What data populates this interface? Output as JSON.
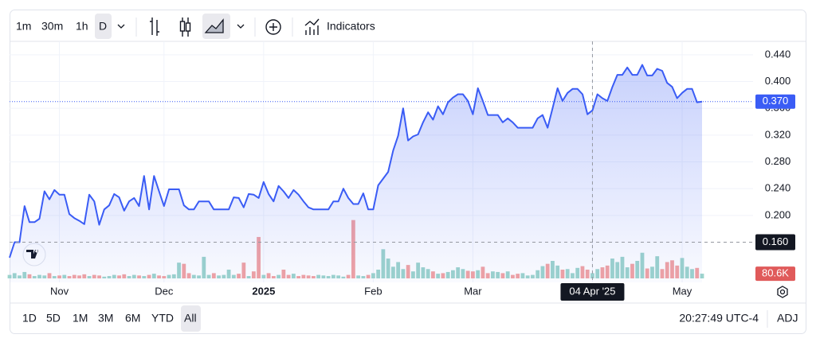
{
  "toolbar": {
    "intervals": [
      "1m",
      "30m",
      "1h",
      "D"
    ],
    "indicators": "Indicators"
  },
  "range_bar": {
    "ranges": [
      "1D",
      "5D",
      "1M",
      "3M",
      "6M",
      "YTD",
      "All"
    ],
    "time": "20:27:49 UTC-4",
    "adjust": "ADJ"
  },
  "chart_data": {
    "type": "area",
    "categories": [
      null,
      null,
      null,
      null,
      null,
      null,
      null,
      null,
      null,
      null,
      "Nov",
      null,
      null,
      null,
      null,
      null,
      null,
      null,
      null,
      null,
      null,
      null,
      null,
      null,
      null,
      null,
      null,
      null,
      null,
      null,
      null,
      "Dec",
      null,
      null,
      null,
      null,
      null,
      null,
      null,
      null,
      null,
      null,
      null,
      null,
      null,
      null,
      null,
      null,
      null,
      null,
      null,
      "2025",
      null,
      null,
      null,
      null,
      null,
      null,
      null,
      null,
      null,
      null,
      null,
      null,
      null,
      null,
      null,
      null,
      null,
      null,
      null,
      null,
      null,
      "Feb",
      null,
      null,
      null,
      null,
      null,
      null,
      null,
      null,
      null,
      null,
      null,
      null,
      null,
      null,
      null,
      null,
      null,
      null,
      null,
      "Mar",
      null,
      null,
      null,
      null,
      null,
      null,
      null,
      null,
      null,
      null,
      null,
      null,
      null,
      null,
      null,
      null,
      null,
      null,
      null,
      null,
      null,
      null,
      null,
      "04 Apr '25",
      null,
      null,
      null,
      null,
      null,
      null,
      null,
      null,
      null,
      null,
      null,
      null,
      null,
      null,
      null,
      null,
      null,
      "May",
      null,
      null,
      null,
      null
    ],
    "values": [
      0.137,
      0.16,
      0.16,
      0.214,
      0.19,
      0.19,
      0.195,
      0.236,
      0.224,
      0.238,
      0.231,
      0.231,
      0.202,
      0.196,
      0.192,
      0.187,
      0.231,
      0.221,
      0.186,
      0.209,
      0.215,
      0.232,
      0.227,
      0.207,
      0.221,
      0.226,
      0.214,
      0.259,
      0.209,
      0.259,
      0.236,
      0.214,
      0.239,
      0.239,
      0.239,
      0.215,
      0.209,
      0.209,
      0.221,
      0.221,
      0.221,
      0.209,
      0.209,
      0.209,
      0.209,
      0.227,
      0.226,
      0.212,
      0.232,
      0.231,
      0.226,
      0.25,
      0.232,
      0.221,
      0.244,
      0.236,
      0.226,
      0.238,
      0.231,
      0.221,
      0.212,
      0.209,
      0.209,
      0.209,
      0.209,
      0.221,
      0.221,
      0.24,
      0.226,
      0.217,
      0.217,
      0.233,
      0.209,
      0.209,
      0.245,
      0.255,
      0.265,
      0.297,
      0.319,
      0.36,
      0.312,
      0.318,
      0.321,
      0.339,
      0.354,
      0.343,
      0.363,
      0.351,
      0.369,
      0.376,
      0.381,
      0.381,
      0.371,
      0.351,
      0.39,
      0.371,
      0.35,
      0.35,
      0.35,
      0.339,
      0.345,
      0.339,
      0.331,
      0.331,
      0.331,
      0.331,
      0.345,
      0.35,
      0.331,
      0.36,
      0.39,
      0.371,
      0.383,
      0.389,
      0.389,
      0.381,
      0.351,
      0.357,
      0.381,
      0.375,
      0.371,
      0.392,
      0.41,
      0.41,
      0.421,
      0.41,
      0.41,
      0.425,
      0.409,
      0.409,
      0.419,
      0.416,
      0.398,
      0.392,
      0.375,
      0.383,
      0.389,
      0.389,
      0.369,
      0.37
    ],
    "color": "#3a5cf5",
    "last_label": "0.370",
    "ylim": [
      0.1,
      0.46
    ],
    "yticks": [
      {
        "value": 0.2,
        "label": "0.200"
      },
      {
        "value": 0.24,
        "label": "0.240"
      },
      {
        "value": 0.28,
        "label": "0.280"
      },
      {
        "value": 0.32,
        "label": "0.320"
      },
      {
        "value": 0.36,
        "label": "0.360"
      },
      {
        "value": 0.4,
        "label": "0.400"
      },
      {
        "value": 0.44,
        "label": "0.440"
      }
    ],
    "grid": true,
    "crosshair": {
      "x": "04 Apr '25",
      "y": {
        "value": 0.16,
        "label": "0.160"
      }
    },
    "volume": {
      "values": [
        60,
        90,
        50,
        110,
        70,
        40,
        60,
        50,
        90,
        40,
        50,
        60,
        40,
        60,
        50,
        70,
        40,
        60,
        50,
        30,
        40,
        60,
        50,
        70,
        40,
        60,
        50,
        40,
        60,
        80,
        50,
        40,
        60,
        70,
        270,
        250,
        90,
        60,
        50,
        370,
        60,
        90,
        50,
        60,
        150,
        60,
        80,
        270,
        40,
        120,
        710,
        60,
        90,
        40,
        60,
        150,
        60,
        80,
        40,
        60,
        50,
        40,
        60,
        50,
        40,
        60,
        50,
        30,
        60,
        1000,
        50,
        40,
        60,
        90,
        150,
        500,
        340,
        200,
        280,
        160,
        230,
        120,
        270,
        190,
        160,
        120,
        80,
        90,
        110,
        140,
        190,
        160,
        130,
        120,
        140,
        200,
        90,
        120,
        110,
        90,
        120,
        60,
        80,
        90,
        50,
        60,
        140,
        210,
        250,
        300,
        220,
        150,
        160,
        90,
        180,
        210,
        150,
        90,
        160,
        190,
        220,
        340,
        280,
        370,
        190,
        250,
        300,
        440,
        170,
        200,
        380,
        160,
        280,
        310,
        220,
        350,
        200,
        160,
        180,
        80.6
      ],
      "vlim": [
        0,
        1500
      ],
      "last_label": "80.6K",
      "up_color": "#9dd4cc",
      "down_color": "#f2a3a3",
      "down_label_color": "#e05a5a"
    }
  }
}
